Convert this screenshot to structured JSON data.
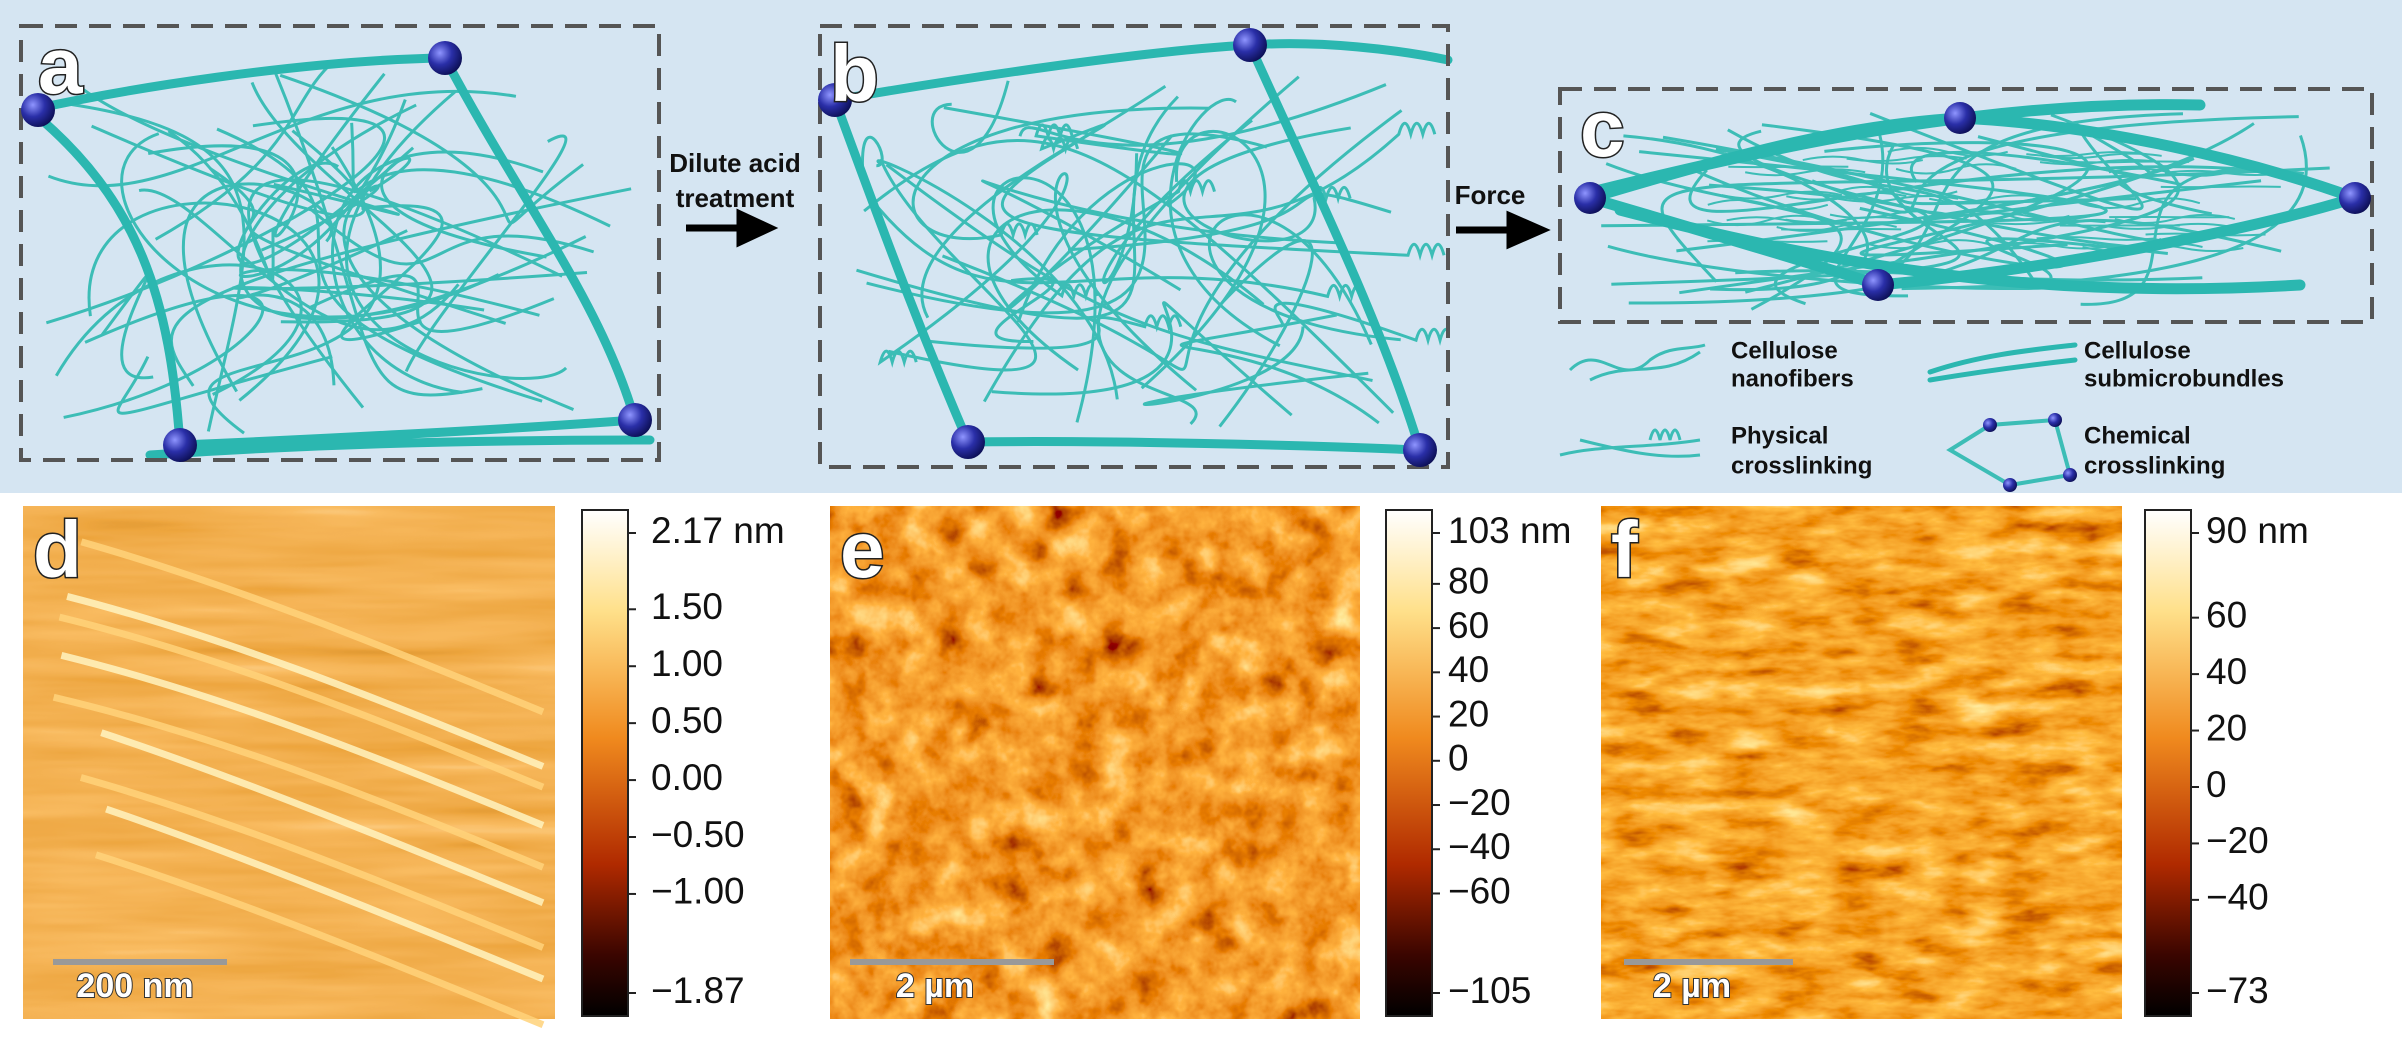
{
  "panels": [
    {
      "label": "a"
    },
    {
      "label": "b"
    },
    {
      "label": "c"
    }
  ],
  "arrows": [
    {
      "lines": [
        "Dilute acid",
        "treatment"
      ]
    },
    {
      "lines": [
        "Force"
      ]
    }
  ],
  "legend": [
    {
      "lines": [
        "Cellulose",
        "nanofibers"
      ]
    },
    {
      "lines": [
        "Cellulose",
        "submicrobundles"
      ]
    },
    {
      "lines": [
        "Physical",
        "crosslinking"
      ]
    },
    {
      "lines": [
        "Chemical",
        "crosslinking"
      ]
    }
  ],
  "afm": [
    {
      "label": "d",
      "scale_bar": "200 nm",
      "colorbar_ticks": [
        {
          "value": 2.17,
          "label": "2.17 nm"
        },
        {
          "value": 1.5,
          "label": "1.50"
        },
        {
          "value": 1,
          "label": "1.00"
        },
        {
          "value": 0.5,
          "label": "0.50"
        },
        {
          "value": 0,
          "label": "0.00"
        },
        {
          "value": -0.5,
          "label": "−0.50"
        },
        {
          "value": -1,
          "label": "−1.00"
        },
        {
          "value": -1.87,
          "label": "−1.87"
        }
      ]
    },
    {
      "label": "e",
      "scale_bar": "2 µm",
      "colorbar_ticks": [
        {
          "value": 103,
          "label": "103 nm"
        },
        80,
        60,
        40,
        20,
        0,
        {
          "value": -20,
          "label": "−20"
        },
        {
          "value": -40,
          "label": "−40"
        },
        {
          "value": -60,
          "label": "−60"
        },
        {
          "value": -105,
          "label": "−105"
        }
      ]
    },
    {
      "label": "f",
      "scale_bar": "2 µm",
      "colorbar_ticks": [
        {
          "value": 90,
          "label": "90 nm"
        },
        60,
        40,
        20,
        0,
        {
          "value": -20,
          "label": "−20"
        },
        {
          "value": -40,
          "label": "−40"
        },
        {
          "value": -73,
          "label": "−73"
        }
      ]
    }
  ]
}
